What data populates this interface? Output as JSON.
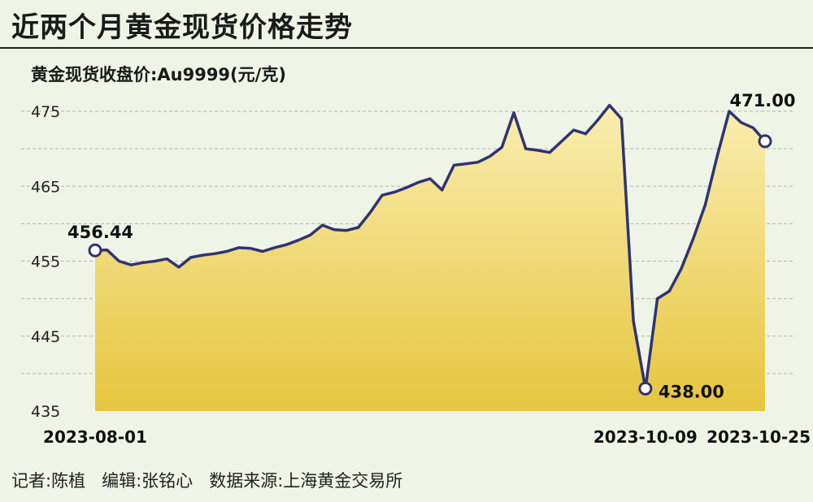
{
  "header": {
    "title": "近两个月黄金现货价格走势",
    "subtitle": "黄金现货收盘价:Au9999(元/克)"
  },
  "footer": {
    "credits": "记者:陈植   编辑:张铭心   数据来源:上海黄金交易所"
  },
  "colors": {
    "line": "#2f3470",
    "fill_top": "#faeeb0",
    "fill_bottom": "#e6c53e",
    "grid": "#b5b5b5",
    "background": "#eef4e6"
  },
  "chart_data": {
    "type": "area",
    "ylim": [
      435,
      477
    ],
    "yticks": [
      435,
      445,
      455,
      465,
      475
    ],
    "x_tick_labels": [
      {
        "index": 0,
        "label": "2023-08-01"
      },
      {
        "index": 46,
        "label": "2023-10-09"
      },
      {
        "index": 56,
        "label": "2023-10-25"
      }
    ],
    "annotations": [
      {
        "index": 0,
        "label": "456.44"
      },
      {
        "index": 46,
        "label": "438.00"
      },
      {
        "index": 56,
        "label": "471.00"
      }
    ],
    "grid": true,
    "values": [
      456.44,
      456.5,
      455.0,
      454.5,
      454.8,
      455.0,
      455.3,
      454.2,
      455.5,
      455.8,
      456.0,
      456.3,
      456.8,
      456.7,
      456.3,
      456.8,
      457.2,
      457.8,
      458.5,
      459.8,
      459.2,
      459.1,
      459.5,
      461.5,
      463.8,
      464.2,
      464.8,
      465.5,
      466.0,
      464.5,
      467.8,
      468.0,
      468.2,
      469.0,
      470.2,
      474.8,
      470.0,
      469.8,
      469.5,
      471.0,
      472.5,
      472.0,
      473.8,
      475.8,
      474.0,
      447.0,
      438.0,
      450.0,
      451.0,
      454.0,
      458.0,
      462.5,
      469.0,
      475.0,
      473.5,
      472.8,
      471.0
    ]
  }
}
